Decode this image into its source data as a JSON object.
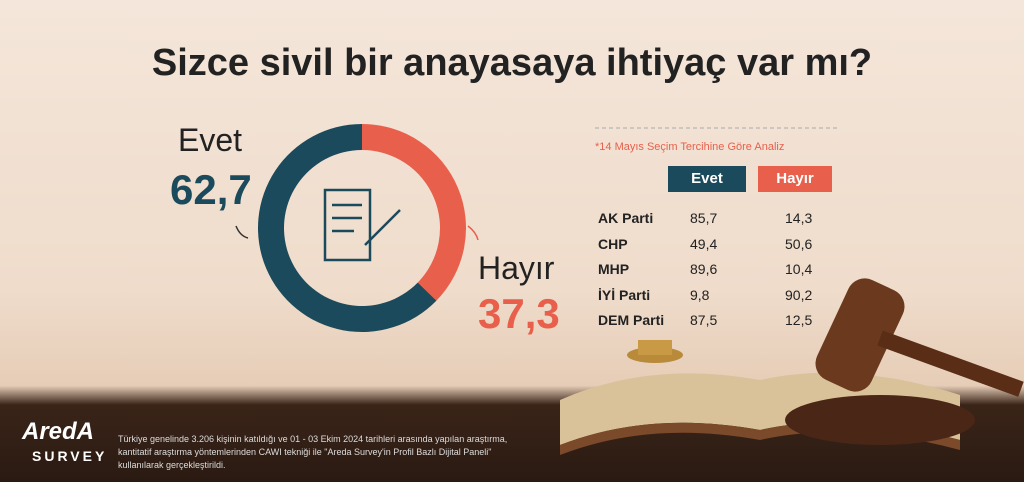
{
  "chart_data": {
    "type": "donut",
    "title": "Sizce sivil bir anayasaya ihtiyaç var mı?",
    "categories": [
      "Evet",
      "Hayır"
    ],
    "values": [
      62.7,
      37.3
    ],
    "value_labels": [
      "62,7",
      "37,3"
    ],
    "colors": [
      "#1b4a5c",
      "#e8604c"
    ]
  },
  "table": {
    "note": "*14 Mayıs Seçim Tercihine Göre Analiz",
    "header": [
      "Evet",
      "Hayır"
    ],
    "rows": [
      [
        "AK Parti",
        "85,7",
        "14,3"
      ],
      [
        "CHP",
        "49,4",
        "50,6"
      ],
      [
        "MHP",
        "89,6",
        "10,4"
      ],
      [
        "İYİ Parti",
        "9,8",
        "90,2"
      ],
      [
        "DEM Parti",
        "87,5",
        "12,5"
      ]
    ]
  },
  "footer": {
    "logo": "AredA",
    "logo_sub": "SURVEY",
    "text": "Türkiye genelinde 3.206 kişinin katıldığı ve 01 - 03 Ekim 2024 tarihleri arasında yapılan araştırma, kantitatif araştırma yöntemlerinden CAWI tekniği ile \"Areda Survey'in Profil Bazlı Dijital Paneli\" kullanılarak gerçekleştirildi."
  }
}
